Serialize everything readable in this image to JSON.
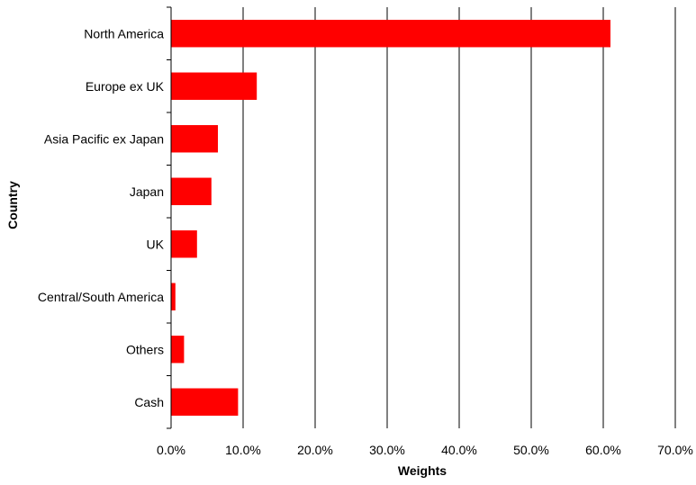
{
  "chart_data": {
    "type": "bar",
    "orientation": "horizontal",
    "title": "",
    "xlabel": "Weights",
    "ylabel": "Country",
    "categories": [
      "North America",
      "Europe ex UK",
      "Asia Pacific ex Japan",
      "Japan",
      "UK",
      "Central/South America",
      "Others",
      "Cash"
    ],
    "values": [
      61.0,
      11.9,
      6.5,
      5.6,
      3.6,
      0.6,
      1.8,
      9.3
    ],
    "value_unit": "%",
    "xlim": [
      0,
      70
    ],
    "xticks": [
      0,
      10,
      20,
      30,
      40,
      50,
      60,
      70
    ],
    "xtick_labels": [
      "0.0%",
      "10.0%",
      "20.0%",
      "30.0%",
      "40.0%",
      "50.0%",
      "60.0%",
      "70.0%"
    ],
    "grid": "vertical major gridlines",
    "legend": "none",
    "bar_color": "#ff0000",
    "grid_color": "#000000"
  }
}
